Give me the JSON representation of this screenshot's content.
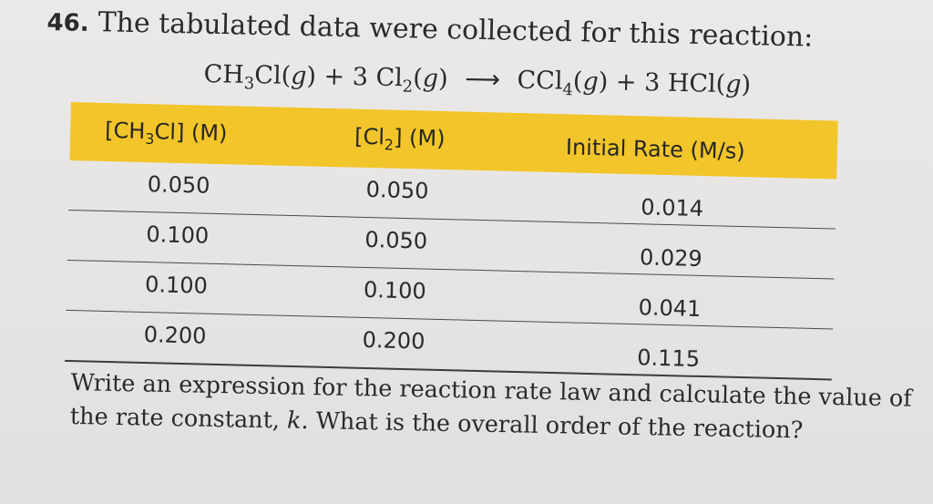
{
  "problem": {
    "number": "46.",
    "title": "The tabulated data were collected for this reaction:"
  },
  "equation": {
    "reactant1": "CH",
    "reactant1_sub": "3",
    "reactant1_rest": "Cl(",
    "state_g": "g",
    "close": ")",
    "plus1": "+ 3 Cl",
    "cl2_sub": "2",
    "open": "(",
    "arrow": "⟶",
    "product1": "CCl",
    "product1_sub": "4",
    "plus2": "+ 3 HCl("
  },
  "table": {
    "headers": {
      "col1_a": "[CH",
      "col1_sub": "3",
      "col1_b": "Cl] (M)",
      "col2_a": "[Cl",
      "col2_sub": "2",
      "col2_b": "] (M)",
      "col3": "Initial Rate (M/s)"
    },
    "rows": [
      {
        "ch3cl": "0.050",
        "cl2": "0.050",
        "rate": "0.014"
      },
      {
        "ch3cl": "0.100",
        "cl2": "0.050",
        "rate": "0.029"
      },
      {
        "ch3cl": "0.100",
        "cl2": "0.100",
        "rate": "0.041"
      },
      {
        "ch3cl": "0.200",
        "cl2": "0.200",
        "rate": "0.115"
      }
    ]
  },
  "question": {
    "part1": "Write an expression for the reaction rate law and calculate the value of the rate constant, ",
    "k": "k",
    "part2": ". What is the overall order of the reaction?"
  }
}
